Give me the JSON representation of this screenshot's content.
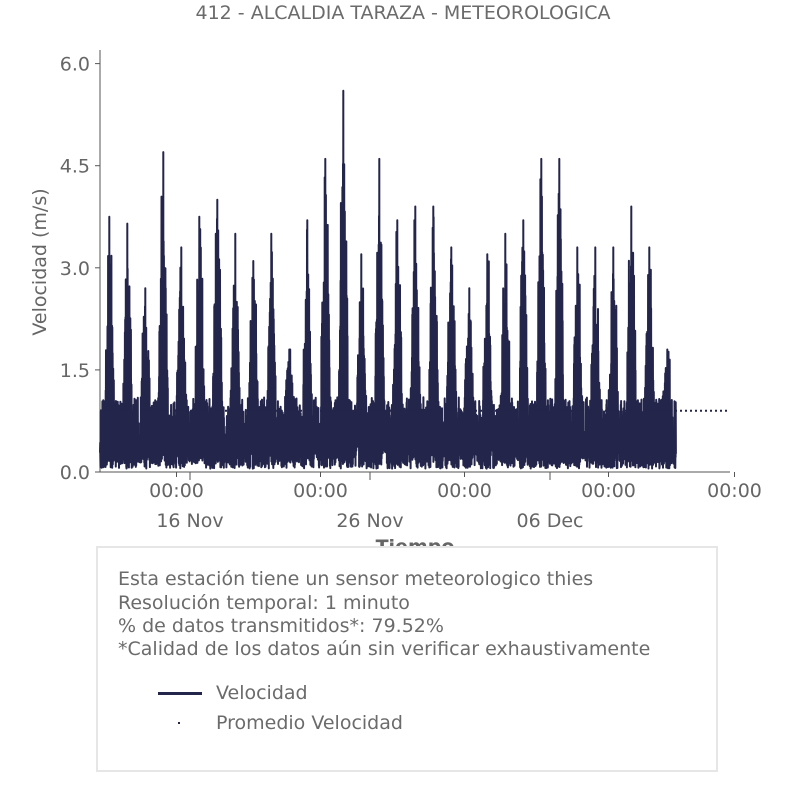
{
  "chart_data": {
    "type": "line",
    "title": "412 - ALCALDIA TARAZA - METEOROLOGICA",
    "xlabel": "Tiempo",
    "ylabel": "Velocidad (m/s)",
    "ylim": [
      0,
      6.2
    ],
    "y_ticks": [
      "0.0",
      "1.5",
      "3.0",
      "4.5",
      "6.0"
    ],
    "x_ticks_major": [
      "16 Nov",
      "26 Nov",
      "06 Dec"
    ],
    "x_ticks_minor": [
      "00:00",
      "00:00",
      "00:00",
      "00:00",
      "00:00"
    ],
    "x_range_days": [
      "2019-11-11",
      "2019-12-16"
    ],
    "grid": false,
    "series": [
      {
        "name": "Velocidad",
        "style": "solid",
        "color": "#23254a",
        "daily_peaks": [
          {
            "date": "2019-11-11",
            "value": 3.75
          },
          {
            "date": "2019-11-12",
            "value": 3.65
          },
          {
            "date": "2019-11-13",
            "value": 2.7
          },
          {
            "date": "2019-11-14",
            "value": 4.7
          },
          {
            "date": "2019-11-15",
            "value": 3.3
          },
          {
            "date": "2019-11-16",
            "value": 3.75
          },
          {
            "date": "2019-11-17",
            "value": 4.0
          },
          {
            "date": "2019-11-18",
            "value": 3.5
          },
          {
            "date": "2019-11-19",
            "value": 3.1
          },
          {
            "date": "2019-11-20",
            "value": 3.5
          },
          {
            "date": "2019-11-21",
            "value": 1.8
          },
          {
            "date": "2019-11-22",
            "value": 3.7
          },
          {
            "date": "2019-11-23",
            "value": 4.6
          },
          {
            "date": "2019-11-24",
            "value": 5.6
          },
          {
            "date": "2019-11-25",
            "value": 3.2
          },
          {
            "date": "2019-11-26",
            "value": 4.6
          },
          {
            "date": "2019-11-27",
            "value": 3.7
          },
          {
            "date": "2019-11-28",
            "value": 3.9
          },
          {
            "date": "2019-11-29",
            "value": 3.9
          },
          {
            "date": "2019-11-30",
            "value": 3.3
          },
          {
            "date": "2019-12-01",
            "value": 2.7
          },
          {
            "date": "2019-12-02",
            "value": 3.2
          },
          {
            "date": "2019-12-03",
            "value": 3.5
          },
          {
            "date": "2019-12-04",
            "value": 3.7
          },
          {
            "date": "2019-12-05",
            "value": 4.6
          },
          {
            "date": "2019-12-06",
            "value": 4.6
          },
          {
            "date": "2019-12-07",
            "value": 3.3
          },
          {
            "date": "2019-12-08",
            "value": 3.3
          },
          {
            "date": "2019-12-09",
            "value": 3.3
          },
          {
            "date": "2019-12-10",
            "value": 3.9
          },
          {
            "date": "2019-12-11",
            "value": 3.3
          },
          {
            "date": "2019-12-12",
            "value": 1.8
          }
        ],
        "end_date": "2019-12-12"
      },
      {
        "name": "Promedio Velocidad",
        "style": "dotted",
        "color": "#23254a",
        "value": 0.9
      }
    ]
  },
  "info": {
    "lines": [
      "Esta estación tiene un sensor meteorologico thies",
      "Resolución temporal: 1 minuto",
      "% de datos transmitidos*: 79.52%",
      "*Calidad de los datos aún sin verificar exhaustivamente"
    ],
    "legend": [
      "Velocidad",
      "Promedio Velocidad"
    ]
  }
}
